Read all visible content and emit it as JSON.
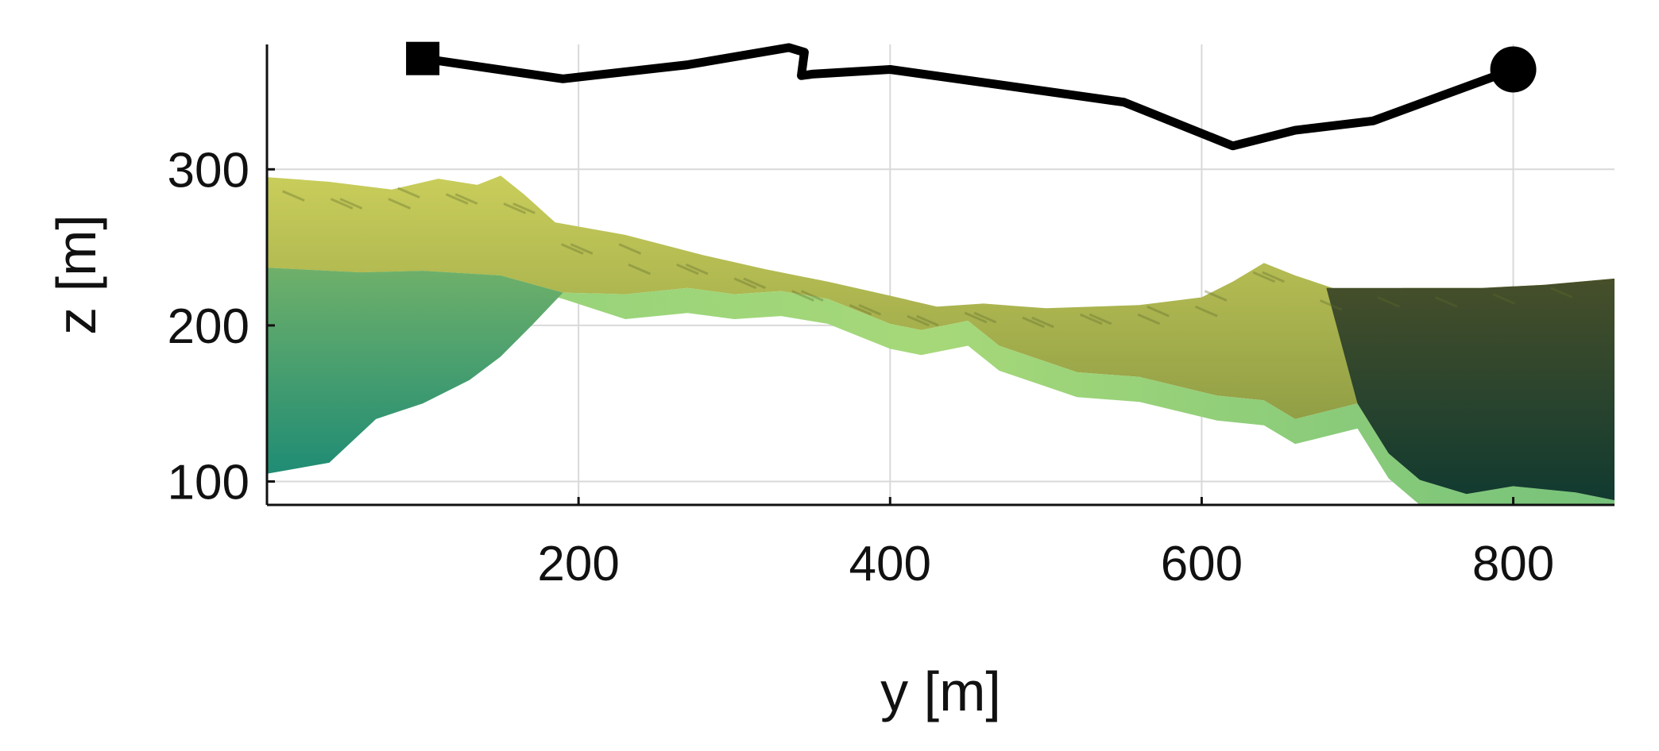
{
  "chart_data": {
    "type": "line",
    "xlabel": "y [m]",
    "ylabel": "z [m]",
    "xlim": [
      0,
      865
    ],
    "ylim": [
      85,
      380
    ],
    "xticks": [
      200,
      400,
      600,
      800
    ],
    "yticks": [
      100,
      200,
      300
    ],
    "grid": true,
    "series": [
      {
        "x": [
          100,
          190,
          270,
          335,
          345,
          343,
          350,
          400,
          550,
          620,
          660,
          710,
          800
        ],
        "y": [
          371,
          358,
          367,
          378,
          375,
          360,
          361,
          364,
          343,
          315,
          325,
          331,
          364
        ],
        "color": "#000000",
        "start_marker": "square",
        "end_marker": "circle"
      }
    ],
    "terrain": {
      "top_surface": {
        "x": [
          0,
          40,
          80,
          110,
          135,
          150,
          165,
          185,
          230,
          280,
          320,
          360,
          400,
          430,
          460,
          500,
          560,
          600,
          620,
          640,
          660,
          690,
          730,
          780,
          820,
          865
        ],
        "y": [
          295,
          292,
          287,
          294,
          290,
          296,
          284,
          266,
          258,
          245,
          236,
          228,
          219,
          212,
          214,
          211,
          213,
          218,
          228,
          240,
          232,
          222,
          224,
          224,
          226,
          230
        ]
      },
      "front_edge": {
        "x": [
          0,
          60,
          100,
          150,
          190,
          230,
          270,
          300,
          330,
          360,
          400,
          420,
          450,
          470,
          520,
          560,
          610,
          640,
          660,
          700,
          720,
          740,
          770,
          800,
          840,
          865
        ],
        "y": [
          237,
          234,
          235,
          232,
          221,
          220,
          224,
          220,
          222,
          217,
          201,
          197,
          203,
          187,
          170,
          167,
          155,
          152,
          140,
          150,
          118,
          101,
          92,
          97,
          93,
          88
        ]
      },
      "lower_body": {
        "x": [
          0,
          40,
          70,
          100,
          130,
          150,
          170,
          190
        ],
        "y": [
          105,
          112,
          140,
          150,
          165,
          180,
          200,
          221
        ]
      },
      "dark_face_x": 680,
      "colors": {
        "top": "#b6bd52",
        "upper": "#7c8a3c",
        "front": "#9bd070",
        "low": "#2f9a72",
        "dark_top": "#41492a",
        "dark_bottom": "#163a2e"
      }
    }
  }
}
